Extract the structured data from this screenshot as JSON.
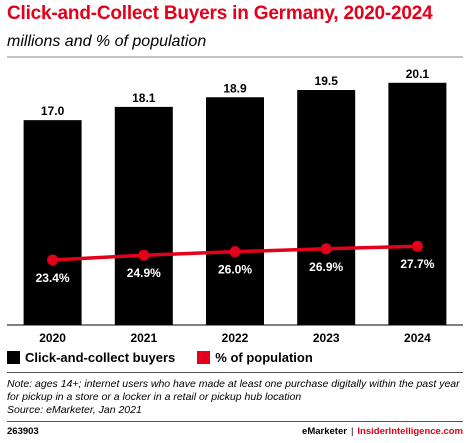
{
  "title": "Click-and-Collect Buyers in Germany, 2020-2024",
  "subtitle": "millions and % of population",
  "chart_data": {
    "type": "bar",
    "categories": [
      "2020",
      "2021",
      "2022",
      "2023",
      "2024"
    ],
    "series": [
      {
        "name": "Click-and-collect buyers",
        "type": "bar",
        "values": [
          17.0,
          18.1,
          18.9,
          19.5,
          20.1
        ],
        "labels": [
          "17.0",
          "18.1",
          "18.9",
          "19.5",
          "20.1"
        ],
        "color": "#000000"
      },
      {
        "name": "% of population",
        "type": "line",
        "values": [
          23.4,
          24.9,
          26.0,
          26.9,
          27.7
        ],
        "labels": [
          "23.4%",
          "24.9%",
          "26.0%",
          "26.9%",
          "27.7%"
        ],
        "color": "#e2001a"
      }
    ],
    "grid": false,
    "legend_position": "bottom-left"
  },
  "legend": {
    "bars": "Click-and-collect buyers",
    "line": "% of population"
  },
  "note": "Note: ages 14+; internet users who have made at least one purchase digitally within the past year for pickup in a store or a locker in a retail or pickup hub location",
  "source": "Source: eMarketer, Jan 2021",
  "footer": {
    "id": "263903",
    "brand1": "eMarketer",
    "separator": "|",
    "brand2": "InsiderIntelligence.com"
  },
  "colors": {
    "accent": "#e2001a",
    "bar": "#000000"
  }
}
